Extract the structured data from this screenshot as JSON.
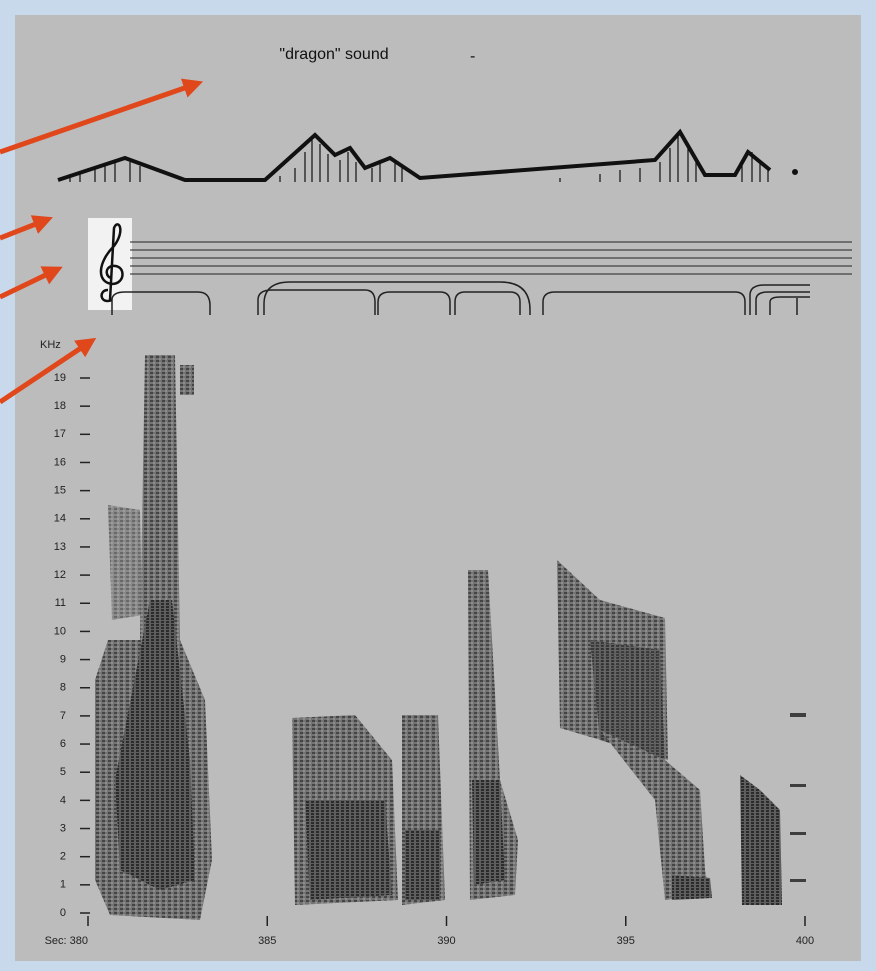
{
  "chart_data": {
    "type": "spectrogram",
    "title": "\"dragon\" sound",
    "annotation": "-",
    "y_label": "KHz",
    "ylim": [
      0,
      19
    ],
    "yticks": [
      0,
      1,
      2,
      3,
      4,
      5,
      6,
      7,
      8,
      9,
      10,
      11,
      12,
      13,
      14,
      15,
      16,
      17,
      18,
      19
    ],
    "xlim": [
      380,
      400
    ],
    "xticks": [
      {
        "value": 380,
        "label": "Sec: 380"
      },
      385,
      390,
      395,
      400
    ]
  }
}
